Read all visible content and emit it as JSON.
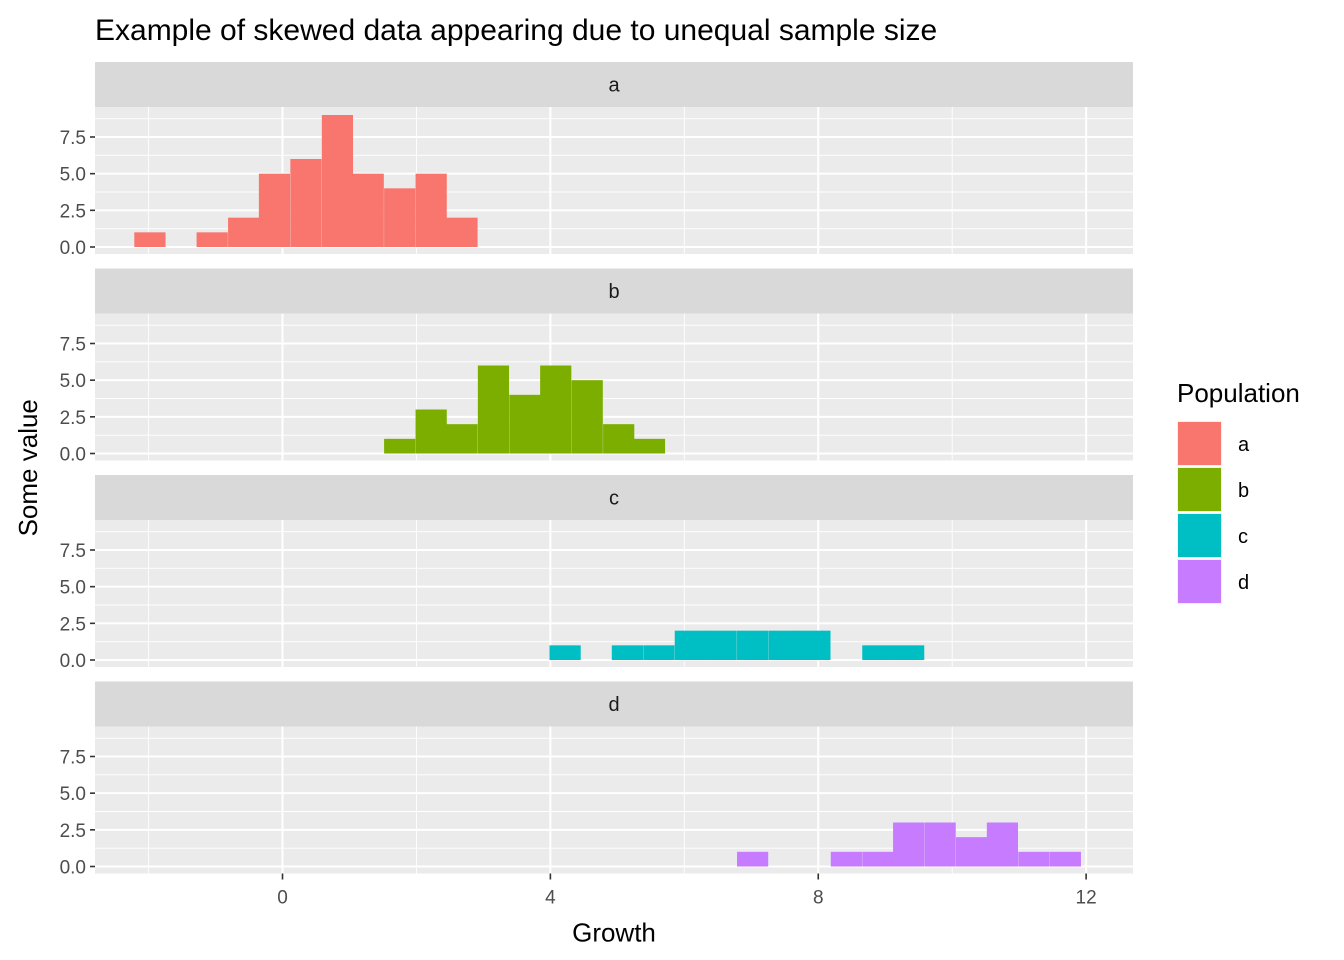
{
  "chart_data": {
    "type": "bar",
    "subtype": "faceted-histogram",
    "title": "Example of skewed data appearing due to unequal sample size",
    "xlabel": "Growth",
    "ylabel": "Some value",
    "xlim": [
      -2.8,
      12.7
    ],
    "ylim": [
      0,
      9
    ],
    "x_ticks": [
      0,
      4,
      8,
      12
    ],
    "y_ticks": [
      0.0,
      2.5,
      5.0,
      7.5
    ],
    "y_tick_labels": [
      "0.0",
      "2.5",
      "5.0",
      "7.5"
    ],
    "grid": true,
    "bin_width": 0.466,
    "legend": {
      "title": "Population",
      "position": "right",
      "entries": [
        {
          "label": "a",
          "color": "#F8766D"
        },
        {
          "label": "b",
          "color": "#7CAE00"
        },
        {
          "label": "c",
          "color": "#00BFC4"
        },
        {
          "label": "d",
          "color": "#C77CFF"
        }
      ]
    },
    "facets": [
      {
        "label": "a",
        "color": "#F8766D",
        "bins": [
          {
            "x": -1.98,
            "count": 1
          },
          {
            "x": -1.52,
            "count": 0
          },
          {
            "x": -1.05,
            "count": 1
          },
          {
            "x": -0.58,
            "count": 2
          },
          {
            "x": -0.12,
            "count": 5
          },
          {
            "x": 0.35,
            "count": 6
          },
          {
            "x": 0.82,
            "count": 9
          },
          {
            "x": 1.28,
            "count": 5
          },
          {
            "x": 1.75,
            "count": 4
          },
          {
            "x": 2.22,
            "count": 5
          },
          {
            "x": 2.68,
            "count": 2
          }
        ]
      },
      {
        "label": "b",
        "color": "#7CAE00",
        "bins": [
          {
            "x": 1.75,
            "count": 1
          },
          {
            "x": 2.22,
            "count": 3
          },
          {
            "x": 2.68,
            "count": 2
          },
          {
            "x": 3.15,
            "count": 6
          },
          {
            "x": 3.62,
            "count": 4
          },
          {
            "x": 4.08,
            "count": 6
          },
          {
            "x": 4.55,
            "count": 5
          },
          {
            "x": 5.02,
            "count": 2
          },
          {
            "x": 5.48,
            "count": 1
          }
        ]
      },
      {
        "label": "c",
        "color": "#00BFC4",
        "bins": [
          {
            "x": 4.22,
            "count": 1
          },
          {
            "x": 4.69,
            "count": 0
          },
          {
            "x": 5.15,
            "count": 1
          },
          {
            "x": 5.62,
            "count": 1
          },
          {
            "x": 6.09,
            "count": 2
          },
          {
            "x": 6.55,
            "count": 2
          },
          {
            "x": 7.02,
            "count": 2
          },
          {
            "x": 7.49,
            "count": 2
          },
          {
            "x": 7.95,
            "count": 2
          },
          {
            "x": 8.42,
            "count": 0
          },
          {
            "x": 8.89,
            "count": 1
          },
          {
            "x": 9.35,
            "count": 1
          }
        ]
      },
      {
        "label": "d",
        "color": "#C77CFF",
        "bins": [
          {
            "x": 7.02,
            "count": 1
          },
          {
            "x": 7.49,
            "count": 0
          },
          {
            "x": 7.95,
            "count": 0
          },
          {
            "x": 8.42,
            "count": 1
          },
          {
            "x": 8.89,
            "count": 1
          },
          {
            "x": 9.35,
            "count": 3
          },
          {
            "x": 9.82,
            "count": 3
          },
          {
            "x": 10.29,
            "count": 2
          },
          {
            "x": 10.75,
            "count": 3
          },
          {
            "x": 11.22,
            "count": 1
          },
          {
            "x": 11.69,
            "count": 1
          }
        ]
      }
    ]
  }
}
